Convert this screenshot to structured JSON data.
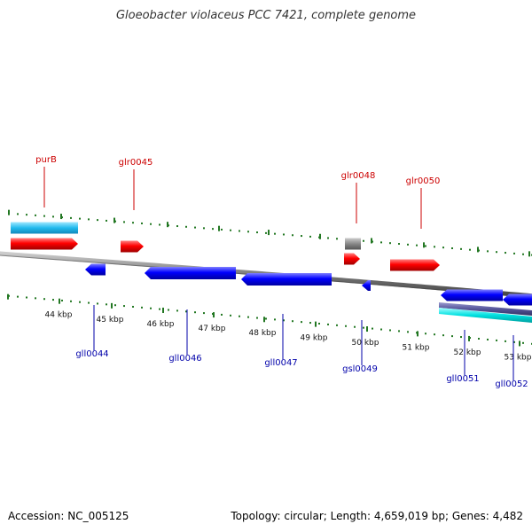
{
  "title": "Gloeobacter violaceus PCC 7421, complete genome",
  "footer": {
    "accession": "Accession: NC_005125",
    "summary": "Topology: circular; Length: 4,659,019 bp; Genes: 4,482"
  },
  "colors": {
    "forward_gene": "#ff0000",
    "reverse_gene": "#0000ff",
    "forward_label": "#cc0000",
    "reverse_label": "#0000aa",
    "rna": "#00ccff",
    "pseudogene": "#888888",
    "tick": "#227722",
    "backbone": "#888888"
  },
  "scale": {
    "start_kbp": 43.0,
    "end_kbp": 53.0,
    "ticks": [
      {
        "label": "44 kbp"
      },
      {
        "label": "45 kbp"
      },
      {
        "label": "46 kbp"
      },
      {
        "label": "47 kbp"
      },
      {
        "label": "48 kbp"
      },
      {
        "label": "49 kbp"
      },
      {
        "label": "50 kbp"
      },
      {
        "label": "51 kbp"
      },
      {
        "label": "52 kbp"
      },
      {
        "label": "53 kbp"
      }
    ]
  },
  "features": [
    {
      "name": "purB",
      "strand": "forward",
      "track": "rna",
      "start": 43.0,
      "end": 43.82,
      "labelled": true
    },
    {
      "name": "",
      "strand": "forward",
      "track": "cds",
      "start": 43.0,
      "end": 43.82,
      "labelled": false
    },
    {
      "name": "glr0045",
      "strand": "forward",
      "track": "cds",
      "start": 45.25,
      "end": 45.58,
      "labelled": true
    },
    {
      "name": "gll0044",
      "strand": "reverse",
      "track": "cds",
      "start": 44.5,
      "end": 44.92,
      "labelled": true
    },
    {
      "name": "gll0046",
      "strand": "reverse",
      "track": "cds",
      "start": 45.92,
      "end": 47.66,
      "labelled": true
    },
    {
      "name": "gll0047",
      "strand": "reverse",
      "track": "cds",
      "start": 47.76,
      "end": 49.48,
      "labelled": true
    },
    {
      "name": "glr0048",
      "strand": "forward",
      "track": "pseudo",
      "start": 49.82,
      "end": 50.11,
      "labelled": true
    },
    {
      "name": "",
      "strand": "forward",
      "track": "cds",
      "start": 49.82,
      "end": 50.13,
      "labelled": false
    },
    {
      "name": "gsl0049",
      "strand": "reverse",
      "track": "cds",
      "start": 50.03,
      "end": 50.15,
      "labelled": true
    },
    {
      "name": "glr0050",
      "strand": "forward",
      "track": "cds",
      "start": 50.51,
      "end": 51.46,
      "labelled": true
    },
    {
      "name": "gll0051",
      "strand": "reverse",
      "track": "cds",
      "start": 51.59,
      "end": 52.6,
      "labelled": true
    },
    {
      "name": "gll0052",
      "strand": "reverse",
      "track": "cds",
      "start": 52.65,
      "end": 53.0,
      "labelled": true
    }
  ]
}
